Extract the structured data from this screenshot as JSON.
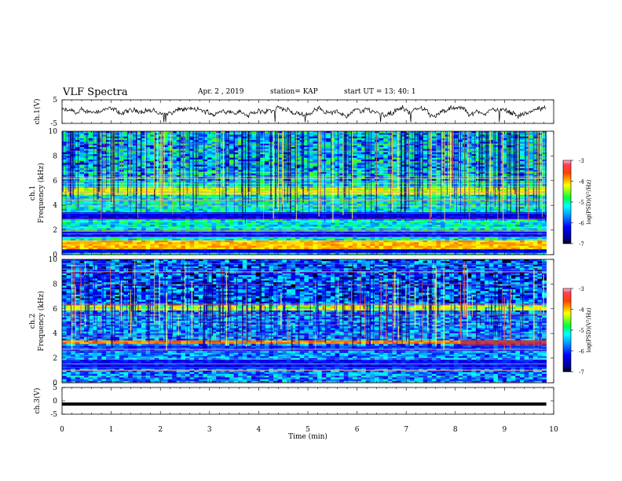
{
  "header": {
    "title": "VLF Spectra",
    "date": "Apr. 2  , 2019",
    "station": "station= KAP",
    "start": "start  UT =   13: 40: 1"
  },
  "chart_data": [
    {
      "type": "line",
      "name": "waveform-ch1",
      "ylabel": "ch.1(V)",
      "ylim": [
        -5,
        5
      ],
      "yticks": [
        "5",
        "-5"
      ],
      "xlim": [
        0,
        10
      ],
      "note": "noisy voltage trace centered near 0 V with spikes toward -5 V"
    },
    {
      "type": "heatmap",
      "name": "spectrogram-ch1",
      "ylabel": "ch.1  Frequency (kHz)",
      "ylim": [
        0,
        10
      ],
      "yticks": [
        "0",
        "2",
        "4",
        "6",
        "8",
        "10"
      ],
      "xlim": [
        0,
        10
      ],
      "data_end_min": 9.85,
      "colorbar": {
        "label": "log(PSD)(V²/Hz)",
        "range": [
          -7,
          -3
        ],
        "ticks": [
          "-3",
          "-4",
          "-5",
          "-6",
          "-7"
        ]
      },
      "dominant_bands_khz": [
        {
          "from": 0.1,
          "to": 0.4,
          "level": -6.3
        },
        {
          "from": 0.4,
          "to": 1.2,
          "level": -4.0
        },
        {
          "from": 1.4,
          "to": 1.9,
          "level": -6.2
        },
        {
          "from": 2.9,
          "to": 3.4,
          "level": -6.3
        },
        {
          "from": 4.8,
          "to": 5.4,
          "level": -4.3
        }
      ]
    },
    {
      "type": "heatmap",
      "name": "spectrogram-ch2",
      "ylabel": "ch.2  Frequency (kHz)",
      "ylim": [
        0,
        10
      ],
      "yticks": [
        "0",
        "2",
        "4",
        "6",
        "8",
        "10"
      ],
      "xlim": [
        0,
        10
      ],
      "data_end_min": 9.85,
      "colorbar": {
        "label": "log(PSD)(V²/Hz)",
        "range": [
          -7,
          -3
        ],
        "ticks": [
          "-3",
          "-4",
          "-5",
          "-6",
          "-7"
        ]
      },
      "dominant_bands_khz": [
        {
          "from": 1.2,
          "to": 1.8,
          "level": -6.2
        },
        {
          "from": 2.6,
          "to": 3.0,
          "level": -6.0
        },
        {
          "from": 5.8,
          "to": 6.3,
          "level": -4.2
        },
        {
          "from": 3.1,
          "to": 3.4,
          "level": -3.8
        }
      ]
    },
    {
      "type": "line",
      "name": "waveform-ch3",
      "ylabel": "ch.3(V)",
      "ylim": [
        -5,
        5
      ],
      "yticks": [
        "5",
        "0",
        "-5"
      ],
      "xlim": [
        0,
        10
      ],
      "constant_value": -1.2,
      "xlabel": "Time  (min)",
      "xticks": [
        "0",
        "1",
        "2",
        "3",
        "4",
        "5",
        "6",
        "7",
        "8",
        "9",
        "10"
      ]
    }
  ]
}
